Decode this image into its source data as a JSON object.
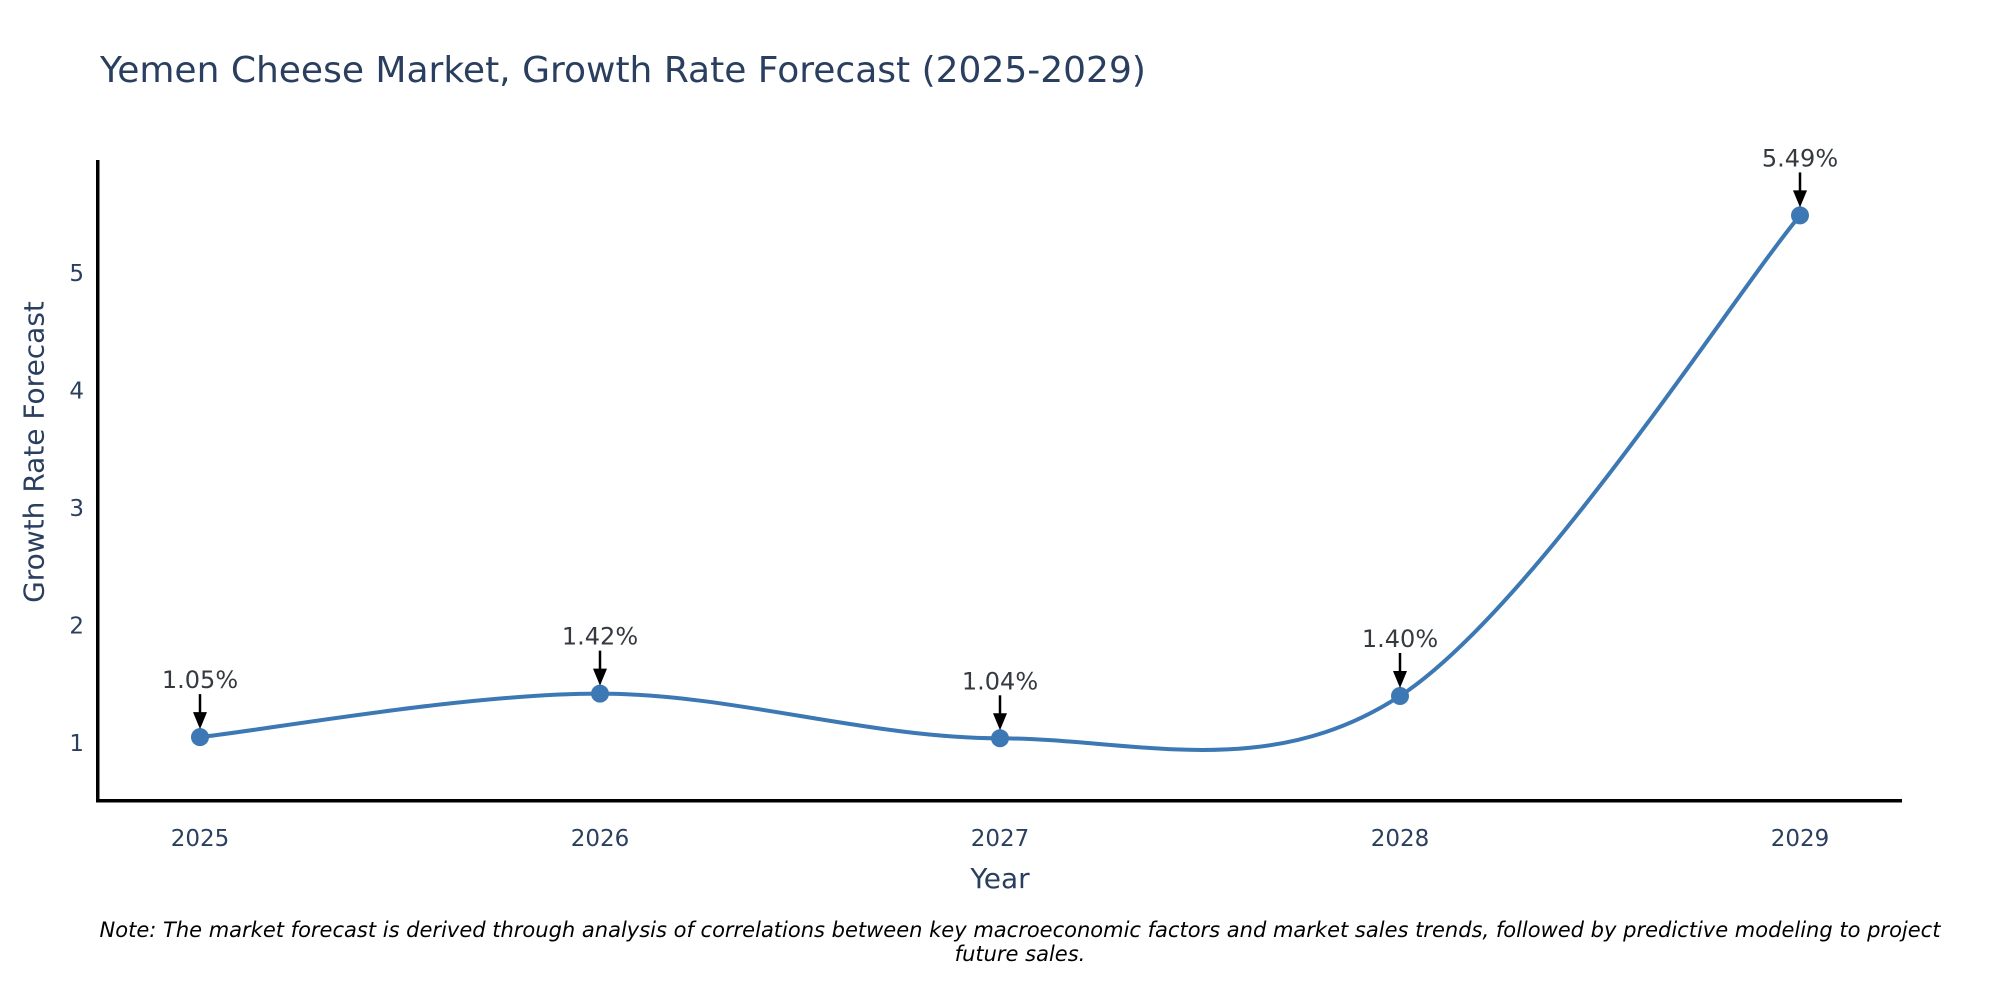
{
  "title": {
    "text": "Yemen Cheese Market, Growth Rate Forecast (2025-2029)",
    "color": "#2a3f5f"
  },
  "note": {
    "text": "Note: The market forecast is derived through analysis of correlations between key macroeconomic factors and market sales trends, followed by predictive modeling to project future sales."
  },
  "chart_data": {
    "type": "line",
    "title": "Yemen Cheese Market, Growth Rate Forecast (2025-2029)",
    "xlabel": "Year",
    "ylabel": "Growth Rate Forecast",
    "x": [
      2025,
      2026,
      2027,
      2028,
      2029
    ],
    "series": [
      {
        "name": "Growth Rate Forecast",
        "values": [
          1.05,
          1.42,
          1.04,
          1.4,
          5.49
        ]
      }
    ],
    "point_labels": [
      "1.05%",
      "1.42%",
      "1.04%",
      "1.40%",
      "5.49%"
    ],
    "yticks": [
      1,
      2,
      3,
      4,
      5
    ],
    "xlim": [
      2024.74,
      2029.26
    ],
    "ylim": [
      0.5,
      6.0
    ],
    "grid": false,
    "legend": false,
    "line_shape": "spline",
    "annotations_have_arrows": true,
    "colors": {
      "line": "#3c78b4",
      "marker": "#3c78b4",
      "axis": "#000000",
      "tick_label": "#2a3f5f",
      "annotation_text": "#343a40",
      "arrow": "#000000"
    }
  }
}
